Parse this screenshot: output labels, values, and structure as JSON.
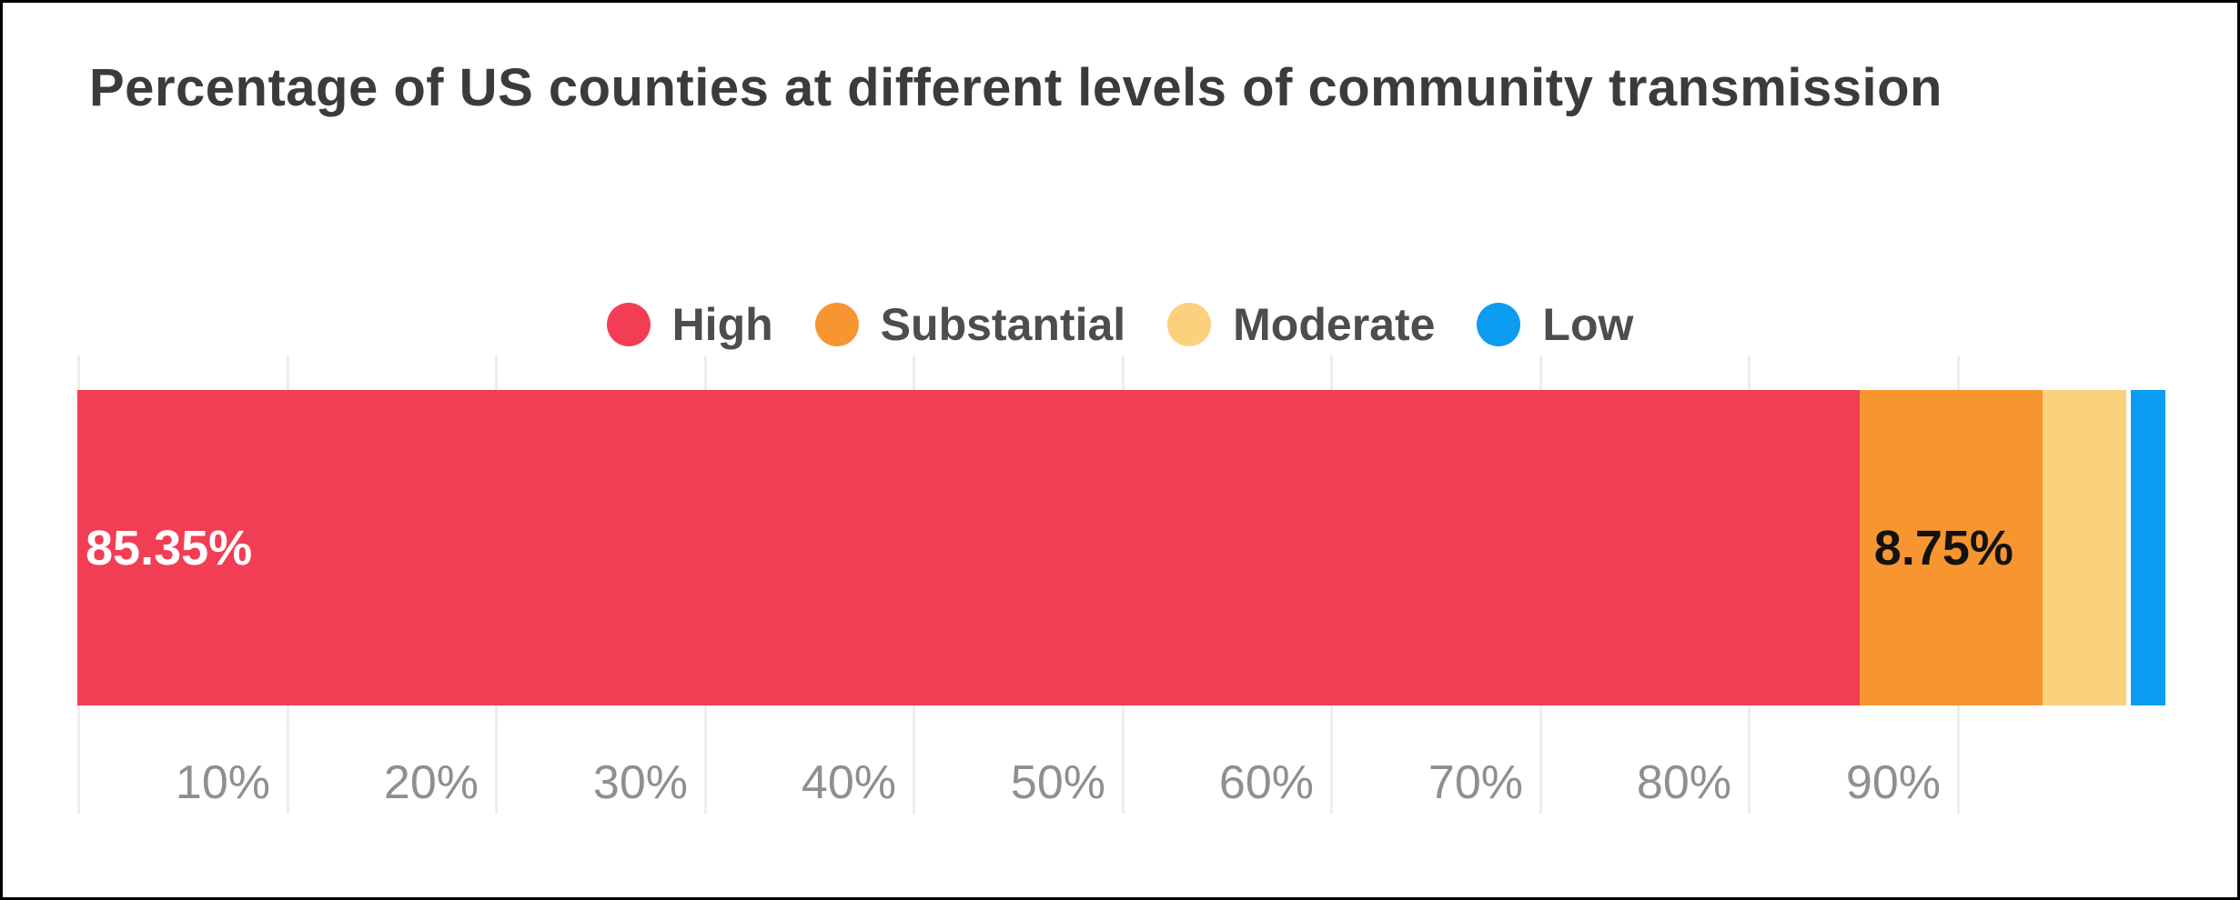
{
  "chart_data": {
    "type": "bar",
    "variant": "horizontal-stacked-single-bar",
    "title": "Percentage of US counties at different levels of community transmission",
    "series": [
      {
        "name": "High",
        "value": 85.35,
        "label": "85.35%",
        "color": "#f23e54",
        "label_color": "#ffffff"
      },
      {
        "name": "Substantial",
        "value": 8.75,
        "label": "8.75%",
        "color": "#f79630",
        "label_color": "#121212"
      },
      {
        "name": "Moderate",
        "value": 4.04,
        "label": "",
        "color": "#fcd17d",
        "label_color": "#121212"
      },
      {
        "name": "Low",
        "value": 1.86,
        "label": "",
        "color": "#0c9cf2",
        "label_color": "#ffffff"
      }
    ],
    "xlabel": "",
    "ylabel": "",
    "xlim": [
      0,
      100
    ],
    "x_ticks": [
      "10%",
      "20%",
      "30%",
      "40%",
      "50%",
      "60%",
      "70%",
      "80%",
      "90%"
    ],
    "x_tick_values": [
      10,
      20,
      30,
      40,
      50,
      60,
      70,
      80,
      90
    ],
    "grid": true,
    "gridline_values": [
      0,
      10,
      20,
      30,
      40,
      50,
      60,
      70,
      80,
      90
    ],
    "legend_position": "top-center",
    "legend_entries": [
      "High",
      "Substantial",
      "Moderate",
      "Low"
    ]
  },
  "colors": {
    "title_text": "#3b3b3b",
    "legend_text": "#4d4d4d",
    "tick_text": "#8f8f8f",
    "gridline": "#ededed",
    "frame_border": "#000000",
    "background": "#ffffff"
  }
}
